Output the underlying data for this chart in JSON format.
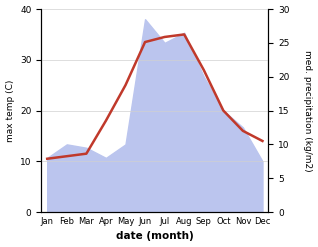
{
  "months": [
    "Jan",
    "Feb",
    "Mar",
    "Apr",
    "May",
    "Jun",
    "Jul",
    "Aug",
    "Sep",
    "Oct",
    "Nov",
    "Dec"
  ],
  "temperature": [
    10.5,
    11.0,
    11.5,
    18.0,
    25.0,
    33.5,
    34.5,
    35.0,
    28.0,
    20.0,
    16.0,
    14.0
  ],
  "precipitation": [
    8.0,
    10.0,
    9.5,
    8.0,
    10.0,
    28.5,
    25.0,
    26.5,
    20.0,
    15.0,
    12.5,
    7.5
  ],
  "temp_color": "#c0392b",
  "precip_fill_color": "#bbc5ee",
  "ylabel_left": "max temp (C)",
  "ylabel_right": "med. precipitation (kg/m2)",
  "xlabel": "date (month)",
  "ylim_left": [
    0,
    40
  ],
  "ylim_right": [
    0,
    30
  ],
  "yticks_left": [
    0,
    10,
    20,
    30,
    40
  ],
  "yticks_right": [
    0,
    5,
    10,
    15,
    20,
    25,
    30
  ]
}
